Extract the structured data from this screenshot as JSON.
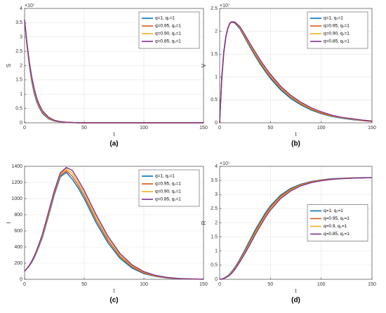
{
  "chart_data": [
    {
      "type": "line",
      "caption": "(a)",
      "xlabel": "t",
      "ylabel": "S",
      "y_multiplier": "×10⁷",
      "x": [
        0,
        2,
        4,
        6,
        8,
        10,
        12,
        15,
        20,
        25,
        30,
        35,
        40,
        45,
        50,
        60,
        70,
        80,
        90,
        100,
        110,
        120,
        130,
        140,
        150
      ],
      "xlim": [
        0,
        150
      ],
      "xticks": [
        0,
        50,
        100,
        150
      ],
      "ylim": [
        0,
        4
      ],
      "yticks": [
        0,
        0.5,
        1,
        1.5,
        2,
        2.5,
        3,
        3.5,
        4
      ],
      "grid": true,
      "legend": "upper right",
      "series": [
        {
          "name": "q=1, q₁=1",
          "color": "#0072bd",
          "values": [
            3.6,
            2.7,
            2.0,
            1.45,
            1.05,
            0.75,
            0.55,
            0.33,
            0.14,
            0.06,
            0.03,
            0.02,
            0.01,
            0,
            0,
            0,
            0,
            0,
            0,
            0,
            0,
            0,
            0,
            0,
            0
          ]
        },
        {
          "name": "q=0.95, q₁=1",
          "color": "#d95319",
          "values": [
            3.6,
            2.74,
            2.05,
            1.51,
            1.11,
            0.8,
            0.59,
            0.36,
            0.16,
            0.07,
            0.03,
            0.02,
            0.01,
            0,
            0,
            0,
            0,
            0,
            0,
            0,
            0,
            0,
            0,
            0,
            0
          ]
        },
        {
          "name": "q=0.90, q₁=1",
          "color": "#edb120",
          "values": [
            3.6,
            2.77,
            2.09,
            1.56,
            1.16,
            0.85,
            0.63,
            0.39,
            0.18,
            0.08,
            0.04,
            0.02,
            0.01,
            0,
            0,
            0,
            0,
            0,
            0,
            0,
            0,
            0,
            0,
            0,
            0
          ]
        },
        {
          "name": "q=0.85, q₁=1",
          "color": "#7e2f8e",
          "values": [
            3.6,
            2.8,
            2.13,
            1.61,
            1.21,
            0.9,
            0.67,
            0.42,
            0.2,
            0.09,
            0.04,
            0.02,
            0.01,
            0,
            0,
            0,
            0,
            0,
            0,
            0,
            0,
            0,
            0,
            0,
            0
          ]
        }
      ]
    },
    {
      "type": "line",
      "caption": "(b)",
      "xlabel": "t",
      "ylabel": "V",
      "y_multiplier": "×10⁷",
      "x": [
        0,
        2,
        4,
        6,
        8,
        10,
        12,
        15,
        20,
        25,
        30,
        35,
        40,
        45,
        50,
        60,
        70,
        80,
        90,
        100,
        110,
        120,
        130,
        140,
        150
      ],
      "xlim": [
        0,
        150
      ],
      "xticks": [
        0,
        50,
        100,
        150
      ],
      "ylim": [
        0,
        2.5
      ],
      "yticks": [
        0,
        0.5,
        1,
        1.5,
        2,
        2.5
      ],
      "grid": true,
      "legend": "upper right",
      "series": [
        {
          "name": "q=1, q₁=1",
          "color": "#0072bd",
          "values": [
            0,
            0.9,
            1.5,
            1.85,
            2.05,
            2.17,
            2.2,
            2.18,
            2.05,
            1.85,
            1.65,
            1.46,
            1.28,
            1.12,
            0.97,
            0.72,
            0.53,
            0.39,
            0.28,
            0.2,
            0.14,
            0.1,
            0.07,
            0.05,
            0.03
          ]
        },
        {
          "name": "q=0.95, q₁=1",
          "color": "#d95319",
          "values": [
            0,
            0.93,
            1.52,
            1.86,
            2.06,
            2.17,
            2.2,
            2.19,
            2.07,
            1.87,
            1.68,
            1.49,
            1.31,
            1.15,
            1.0,
            0.75,
            0.56,
            0.41,
            0.3,
            0.21,
            0.15,
            0.11,
            0.08,
            0.05,
            0.03
          ]
        },
        {
          "name": "q=0.90, q₁=1",
          "color": "#edb120",
          "values": [
            0,
            0.97,
            1.53,
            1.87,
            2.06,
            2.18,
            2.21,
            2.2,
            2.08,
            1.9,
            1.7,
            1.52,
            1.34,
            1.18,
            1.03,
            0.78,
            0.58,
            0.43,
            0.31,
            0.23,
            0.16,
            0.11,
            0.08,
            0.06,
            0.04
          ]
        },
        {
          "name": "q=0.85, q₁=1",
          "color": "#7e2f8e",
          "values": [
            0,
            1.0,
            1.55,
            1.88,
            2.07,
            2.18,
            2.21,
            2.2,
            2.1,
            1.92,
            1.73,
            1.55,
            1.37,
            1.21,
            1.06,
            0.8,
            0.6,
            0.45,
            0.33,
            0.24,
            0.17,
            0.12,
            0.09,
            0.06,
            0.04
          ]
        }
      ]
    },
    {
      "type": "line",
      "caption": "(c)",
      "xlabel": "t",
      "ylabel": "I",
      "x": [
        0,
        2,
        4,
        6,
        8,
        10,
        12,
        15,
        20,
        25,
        30,
        35,
        40,
        45,
        50,
        60,
        70,
        80,
        90,
        100,
        110,
        120,
        130,
        140,
        150
      ],
      "xlim": [
        0,
        150
      ],
      "xticks": [
        0,
        50,
        100,
        150
      ],
      "ylim": [
        0,
        1400
      ],
      "yticks": [
        0,
        200,
        400,
        600,
        800,
        1000,
        1200,
        1400
      ],
      "grid": true,
      "legend": "upper right",
      "series": [
        {
          "name": "q=1, q₁=1",
          "color": "#0072bd",
          "values": [
            100,
            130,
            165,
            210,
            265,
            330,
            405,
            520,
            780,
            1050,
            1270,
            1325,
            1240,
            1130,
            1000,
            700,
            450,
            260,
            140,
            70,
            35,
            15,
            7,
            3,
            1
          ]
        },
        {
          "name": "q=0.95, q₁=1",
          "color": "#d95319",
          "values": [
            100,
            132,
            168,
            215,
            272,
            338,
            415,
            533,
            797,
            1067,
            1287,
            1345,
            1277,
            1163,
            1033,
            733,
            477,
            280,
            153,
            78,
            39,
            17,
            8,
            4,
            1
          ]
        },
        {
          "name": "q=0.90, q₁=1",
          "color": "#edb120",
          "values": [
            100,
            133,
            171,
            220,
            278,
            346,
            425,
            546,
            813,
            1083,
            1303,
            1365,
            1313,
            1197,
            1067,
            767,
            503,
            300,
            167,
            87,
            44,
            20,
            9,
            4,
            2
          ]
        },
        {
          "name": "q=0.85, q₁=1",
          "color": "#7e2f8e",
          "values": [
            100,
            135,
            175,
            225,
            285,
            355,
            435,
            560,
            830,
            1100,
            1320,
            1385,
            1350,
            1230,
            1100,
            800,
            530,
            320,
            180,
            95,
            48,
            22,
            10,
            5,
            2
          ]
        }
      ]
    },
    {
      "type": "line",
      "caption": "(d)",
      "xlabel": "t",
      "ylabel": "R",
      "y_multiplier": "×10⁷",
      "x": [
        0,
        2,
        4,
        6,
        8,
        10,
        12,
        15,
        20,
        25,
        30,
        35,
        40,
        45,
        50,
        60,
        70,
        80,
        90,
        100,
        110,
        120,
        130,
        140,
        150
      ],
      "xlim": [
        0,
        150
      ],
      "xticks": [
        0,
        50,
        100,
        150
      ],
      "ylim": [
        0,
        4
      ],
      "yticks": [
        0,
        0.5,
        1,
        1.5,
        2,
        2.5,
        3,
        3.5,
        4
      ],
      "grid": true,
      "legend": "center right",
      "series": [
        {
          "name": "q=1, q₁=1",
          "color": "#0072bd",
          "values": [
            0,
            0.01,
            0.04,
            0.08,
            0.13,
            0.2,
            0.28,
            0.42,
            0.72,
            1.05,
            1.4,
            1.75,
            2.05,
            2.35,
            2.6,
            2.98,
            3.22,
            3.37,
            3.46,
            3.52,
            3.56,
            3.58,
            3.59,
            3.6,
            3.6
          ]
        },
        {
          "name": "q=0.95, q₁=1",
          "color": "#d95319",
          "values": [
            0,
            0.01,
            0.03,
            0.07,
            0.12,
            0.18,
            0.26,
            0.39,
            0.68,
            1.0,
            1.34,
            1.69,
            2.0,
            2.29,
            2.55,
            2.94,
            3.19,
            3.35,
            3.45,
            3.51,
            3.55,
            3.57,
            3.59,
            3.59,
            3.6
          ]
        },
        {
          "name": "q=0.9, q₁=1",
          "color": "#edb120",
          "values": [
            0,
            0.01,
            0.03,
            0.06,
            0.11,
            0.17,
            0.24,
            0.37,
            0.65,
            0.96,
            1.29,
            1.63,
            1.94,
            2.24,
            2.5,
            2.9,
            3.16,
            3.33,
            3.43,
            3.5,
            3.54,
            3.57,
            3.58,
            3.59,
            3.6
          ]
        },
        {
          "name": "q=0.85, q₁=1",
          "color": "#7e2f8e",
          "values": [
            0,
            0.01,
            0.03,
            0.06,
            0.1,
            0.15,
            0.22,
            0.35,
            0.62,
            0.92,
            1.24,
            1.58,
            1.89,
            2.19,
            2.45,
            2.86,
            3.13,
            3.31,
            3.42,
            3.49,
            3.54,
            3.56,
            3.58,
            3.59,
            3.6
          ]
        }
      ]
    }
  ]
}
